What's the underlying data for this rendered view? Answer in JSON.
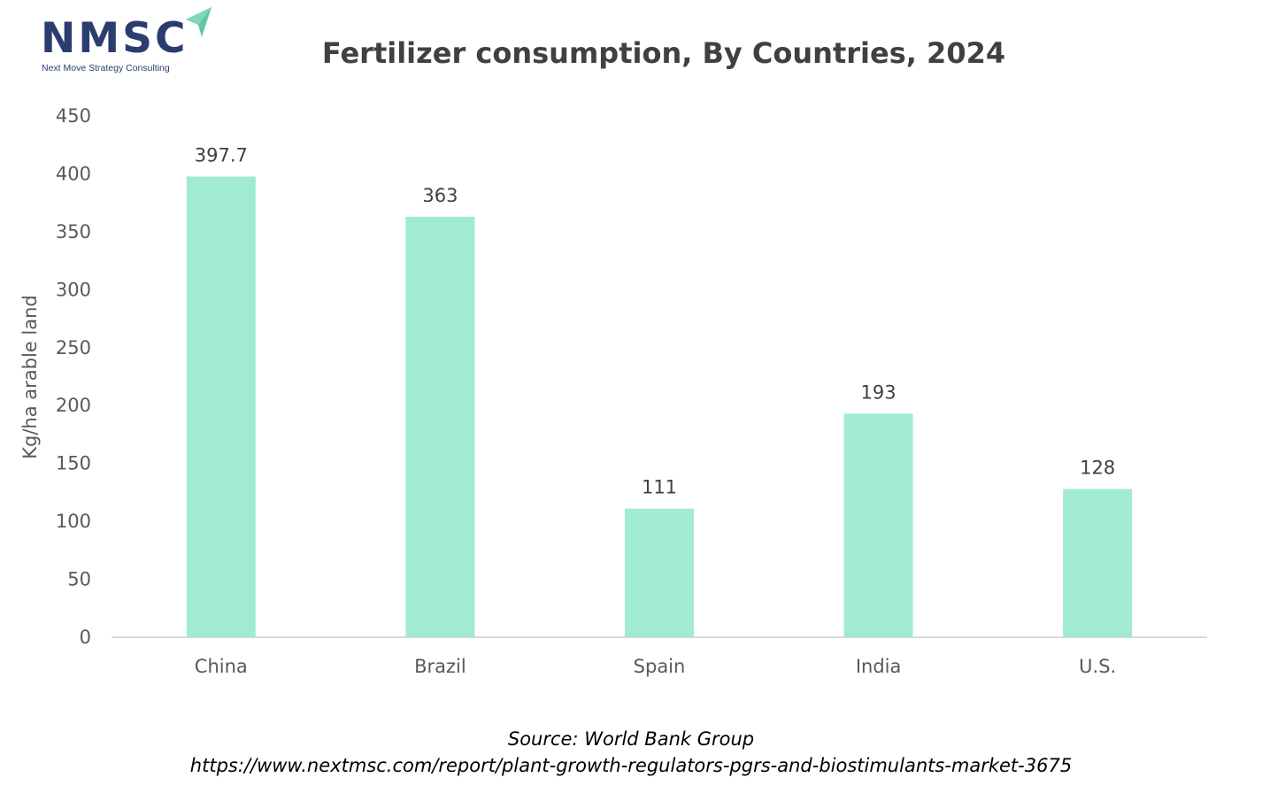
{
  "brand": {
    "logo_text": "NMSC",
    "tagline": "Next Move Strategy Consulting",
    "logo_color": "#2a3d6e",
    "arrow_color": "#5ec9a3"
  },
  "chart_data": {
    "type": "bar",
    "title": "Fertilizer consumption, By Countries, 2024",
    "xlabel": "",
    "ylabel": "Kg/ha arable land",
    "categories": [
      "China",
      "Brazil",
      "Spain",
      "India",
      "U.S."
    ],
    "values": [
      397.7,
      363,
      111,
      193,
      128
    ],
    "value_labels": [
      "397.7",
      "363",
      "111",
      "193",
      "128"
    ],
    "ylim": [
      0,
      450
    ],
    "yticks": [
      0,
      50,
      100,
      150,
      200,
      250,
      300,
      350,
      400,
      450
    ],
    "grid": false,
    "legend": "none",
    "bar_color": "#a0ebd1",
    "axis_color": "#d9d9d9",
    "text_color": "#595959"
  },
  "footer": {
    "source": "Source: World Bank Group",
    "url": "https://www.nextmsc.com/report/plant-growth-regulators-pgrs-and-biostimulants-market-3675"
  }
}
